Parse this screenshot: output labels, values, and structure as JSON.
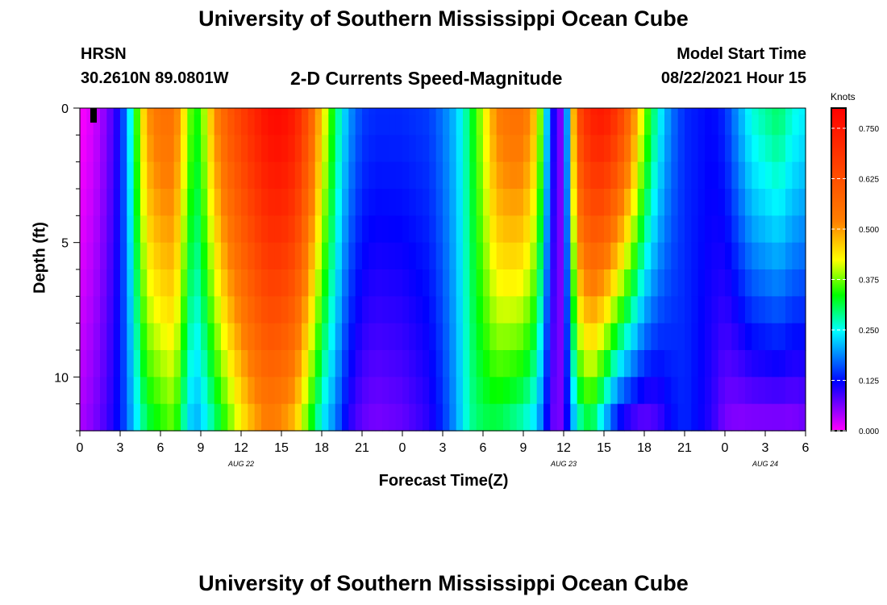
{
  "header": {
    "title_top": "University of Southern Mississippi Ocean Cube",
    "station": "HRSN",
    "coords": "30.2610N  89.0801W",
    "plot_title": "2-D Currents Speed-Magnitude",
    "model_label": "Model Start Time",
    "model_time": "08/22/2021 Hour 15",
    "title_bottom": "University of Southern Mississippi Ocean Cube"
  },
  "chart_data": {
    "type": "heatmap",
    "title": "2-D Currents Speed-Magnitude",
    "xlabel": "Forecast Time(Z)",
    "ylabel": "Depth (ft)",
    "x_range_hours": [
      0,
      54
    ],
    "y_range_ft": [
      0,
      12
    ],
    "x_ticks": [
      "0",
      "3",
      "6",
      "9",
      "12",
      "15",
      "18",
      "21",
      "0",
      "3",
      "6",
      "9",
      "12",
      "15",
      "18",
      "21",
      "0",
      "3",
      "6"
    ],
    "y_ticks": [
      "0",
      "5",
      "10"
    ],
    "y_tick_values": [
      0,
      5,
      10
    ],
    "date_labels": [
      {
        "text": "AUG  22",
        "hour": 12
      },
      {
        "text": "AUG  23",
        "hour": 36
      },
      {
        "text": "AUG  24",
        "hour": 51
      }
    ],
    "colorbar": {
      "unit": "Knots",
      "min": 0.0,
      "max": 0.8,
      "tick_labels": [
        "0.000",
        "0.125",
        "0.250",
        "0.375",
        "0.500",
        "0.625",
        "0.750"
      ],
      "tick_values": [
        0,
        0.125,
        0.25,
        0.375,
        0.5,
        0.625,
        0.75
      ]
    },
    "depth_levels_ft": [
      0,
      0.5,
      1.5,
      2.5,
      3.5,
      4.5,
      5.5,
      6.5,
      7.5,
      8.5,
      9.5,
      10.5,
      11.5
    ],
    "time_profile": {
      "hours": [
        0,
        1,
        2,
        3,
        3.5,
        4,
        5,
        6,
        7,
        8,
        8.5,
        9,
        10,
        11,
        12,
        13,
        14,
        15,
        16,
        17,
        18,
        19,
        20,
        21,
        22,
        24,
        26,
        27,
        28,
        29,
        30,
        31,
        32,
        33,
        34,
        35,
        35.5,
        36,
        37,
        38,
        39,
        40,
        41,
        42,
        43,
        44,
        45,
        46,
        47,
        48,
        49,
        50,
        51,
        52,
        53,
        54
      ],
      "surface_knots": [
        0.0,
        0.02,
        0.06,
        0.12,
        0.2,
        0.3,
        0.5,
        0.55,
        0.55,
        0.4,
        0.32,
        0.35,
        0.5,
        0.6,
        0.66,
        0.72,
        0.77,
        0.78,
        0.74,
        0.62,
        0.45,
        0.3,
        0.2,
        0.15,
        0.14,
        0.14,
        0.15,
        0.18,
        0.22,
        0.3,
        0.4,
        0.52,
        0.55,
        0.55,
        0.45,
        0.15,
        0.07,
        0.06,
        0.62,
        0.73,
        0.75,
        0.68,
        0.55,
        0.38,
        0.26,
        0.18,
        0.14,
        0.13,
        0.12,
        0.14,
        0.2,
        0.26,
        0.28,
        0.3,
        0.26,
        0.24
      ],
      "bottom_knots": [
        0.04,
        0.06,
        0.09,
        0.13,
        0.17,
        0.22,
        0.3,
        0.33,
        0.36,
        0.24,
        0.2,
        0.22,
        0.28,
        0.35,
        0.42,
        0.48,
        0.52,
        0.5,
        0.46,
        0.34,
        0.24,
        0.18,
        0.1,
        0.07,
        0.06,
        0.07,
        0.1,
        0.14,
        0.2,
        0.28,
        0.3,
        0.3,
        0.28,
        0.26,
        0.22,
        0.08,
        0.06,
        0.07,
        0.25,
        0.3,
        0.2,
        0.1,
        0.07,
        0.06,
        0.08,
        0.12,
        0.14,
        0.12,
        0.1,
        0.06,
        0.05,
        0.05,
        0.05,
        0.05,
        0.05,
        0.06
      ]
    }
  }
}
